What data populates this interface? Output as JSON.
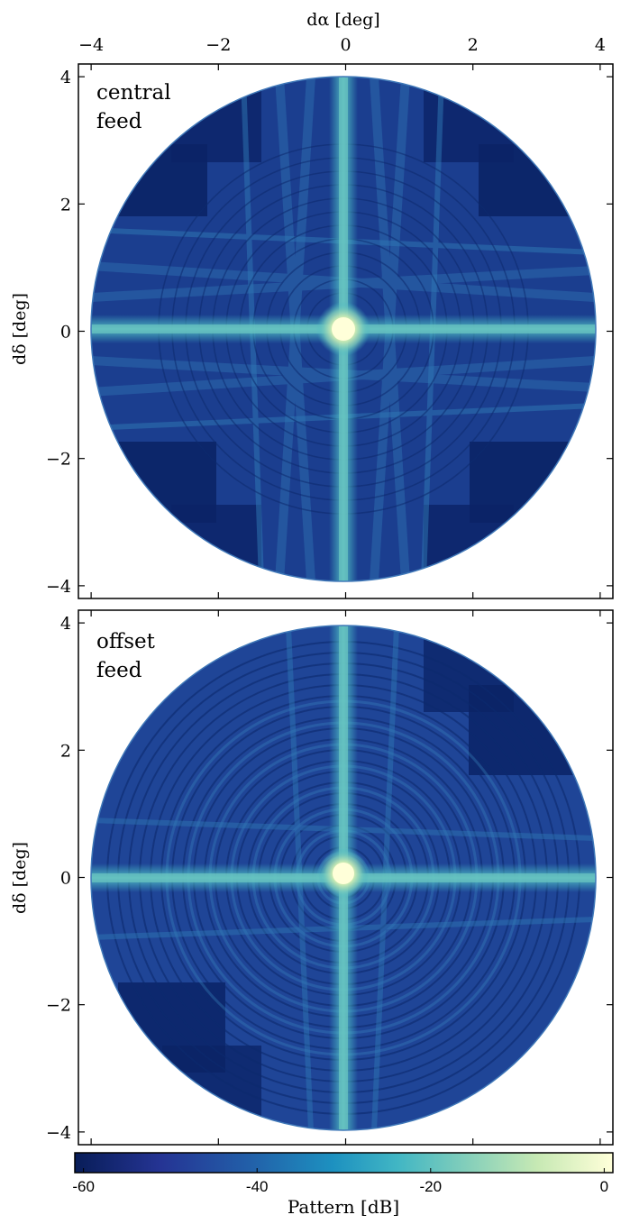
{
  "chart_data": [
    {
      "type": "heatmap",
      "panel_label_lines": [
        "central",
        "feed"
      ],
      "xlabel": "dα [deg]",
      "ylabel": "dδ [deg]",
      "xlim": [
        -4.2,
        4.2
      ],
      "ylim": [
        -4.2,
        4.2
      ],
      "x_ticks": [
        -4,
        -2,
        0,
        2,
        4
      ],
      "x_tick_labels": [
        "−4",
        "−2",
        "0",
        "2",
        "4"
      ],
      "y_ticks": [
        -4,
        -2,
        0,
        2,
        4
      ],
      "y_tick_labels": [
        "−4",
        "−2",
        "0",
        "2",
        "4"
      ],
      "grid": false,
      "footprint_radius": 4.0
    },
    {
      "type": "heatmap",
      "panel_label_lines": [
        "offset",
        "feed"
      ],
      "ylabel": "dδ [deg]",
      "xlim": [
        -4.2,
        4.2
      ],
      "ylim": [
        -4.2,
        4.2
      ],
      "x_ticks": [
        -4,
        -2,
        0,
        2,
        4
      ],
      "y_ticks": [
        -4,
        -2,
        0,
        2,
        4
      ],
      "y_tick_labels": [
        "−4",
        "−2",
        "0",
        "2",
        "4"
      ],
      "grid": false,
      "footprint_radius": 4.0
    }
  ],
  "colorbar": {
    "label": "Pattern [dB]",
    "range": [
      -61,
      1
    ],
    "ticks": [
      -60,
      -40,
      -20,
      0
    ],
    "tick_labels": [
      "-60",
      "-40",
      "-20",
      "0"
    ],
    "colors": [
      "#081d58",
      "#253494",
      "#225ea8",
      "#1d91c0",
      "#41b6c4",
      "#7fcdbb",
      "#c7e9b4",
      "#ffffd9"
    ]
  }
}
